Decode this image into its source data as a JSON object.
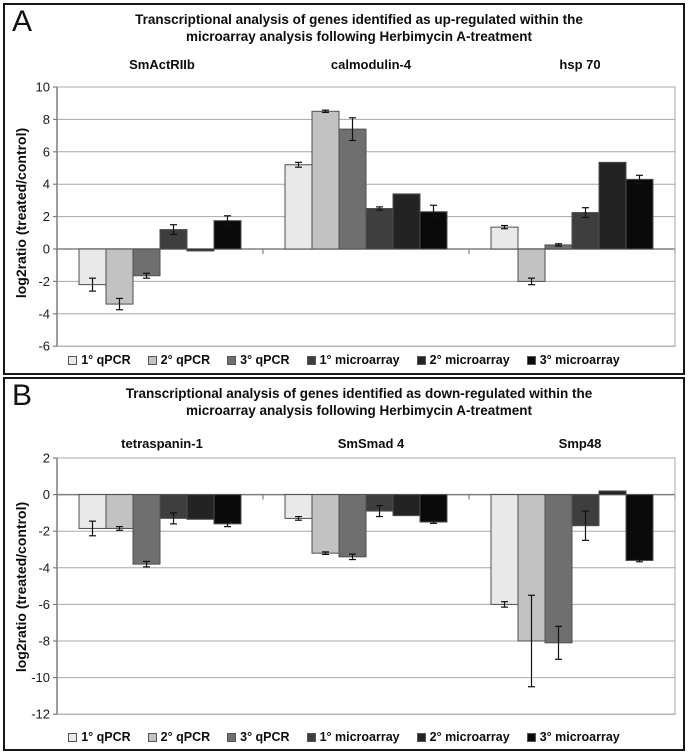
{
  "figure": {
    "background": "#ffffff",
    "panel_border_color": "#161616",
    "grid_color": "#a8a8a8",
    "axis_color": "#7f7f7f",
    "zero_line_color": "#808080",
    "error_bar_color": "#111111",
    "bar_border_color": "#4f4f4f"
  },
  "series_colors": [
    "#e9e9e9",
    "#c2c2c2",
    "#6f6f6f",
    "#3e3e3e",
    "#232323",
    "#0a0a0a"
  ],
  "panels": [
    {
      "letter": "A",
      "title_line1": "Transcriptional analysis of genes identified as up-regulated within the",
      "title_line2": "microarray analysis following Herbimycin A-treatment"
    },
    {
      "letter": "B",
      "title_line1": "Transcriptional analysis of genes identified as down-regulated within the",
      "title_line2": "microarray analysis following Herbimycin A-treatment"
    }
  ],
  "chart_data": [
    {
      "type": "bar",
      "title": "Transcriptional analysis of genes identified as up-regulated within the microarray analysis following Herbimycin A-treatment",
      "ylabel": "log2ratio (treated/control)",
      "ylim": [
        -6,
        10
      ],
      "ytick_step": 2,
      "grid": true,
      "legend_position": "bottom",
      "categories": [
        "SmActRIIb",
        "calmodulin-4",
        "hsp 70"
      ],
      "series": [
        {
          "name": "1° qPCR",
          "values": [
            -2.2,
            5.2,
            1.35
          ],
          "errors": [
            0.4,
            0.15,
            0.1
          ]
        },
        {
          "name": "2° qPCR",
          "values": [
            -3.4,
            8.5,
            -2.0
          ],
          "errors": [
            0.35,
            0.07,
            0.2
          ]
        },
        {
          "name": "3° qPCR",
          "values": [
            -1.65,
            7.4,
            0.25
          ],
          "errors": [
            0.15,
            0.7,
            0.07
          ]
        },
        {
          "name": "1° microarray",
          "values": [
            1.2,
            2.5,
            2.25
          ],
          "errors": [
            0.3,
            0.1,
            0.3
          ]
        },
        {
          "name": "2° microarray",
          "values": [
            -0.12,
            3.4,
            5.35
          ],
          "errors": [
            0,
            0,
            0
          ]
        },
        {
          "name": "3° microarray",
          "values": [
            1.75,
            2.3,
            4.3
          ],
          "errors": [
            0.3,
            0.4,
            0.25
          ]
        }
      ]
    },
    {
      "type": "bar",
      "title": "Transcriptional analysis of genes identified as down-regulated within the microarray analysis following Herbimycin A-treatment",
      "ylabel": "log2ratio (treated/control)",
      "ylim": [
        -12,
        2
      ],
      "ytick_step": 2,
      "grid": true,
      "legend_position": "bottom",
      "categories": [
        "tetraspanin-1",
        "SmSmad 4",
        "Smp48"
      ],
      "series": [
        {
          "name": "1° qPCR",
          "values": [
            -1.85,
            -1.3,
            -6.0
          ],
          "errors": [
            0.4,
            0.1,
            0.15
          ]
        },
        {
          "name": "2° qPCR",
          "values": [
            -1.85,
            -3.2,
            -8.0
          ],
          "errors": [
            0.1,
            0.07,
            2.5
          ]
        },
        {
          "name": "3° qPCR",
          "values": [
            -3.8,
            -3.4,
            -8.1
          ],
          "errors": [
            0.15,
            0.15,
            0.9
          ]
        },
        {
          "name": "1° microarray",
          "values": [
            -1.3,
            -0.9,
            -1.7
          ],
          "errors": [
            0.3,
            0.3,
            0.8
          ]
        },
        {
          "name": "2° microarray",
          "values": [
            -1.35,
            -1.15,
            0.2
          ],
          "errors": [
            0,
            0,
            0
          ]
        },
        {
          "name": "3° microarray",
          "values": [
            -1.6,
            -1.5,
            -3.6
          ],
          "errors": [
            0.15,
            0.07,
            0.07
          ]
        }
      ]
    }
  ]
}
